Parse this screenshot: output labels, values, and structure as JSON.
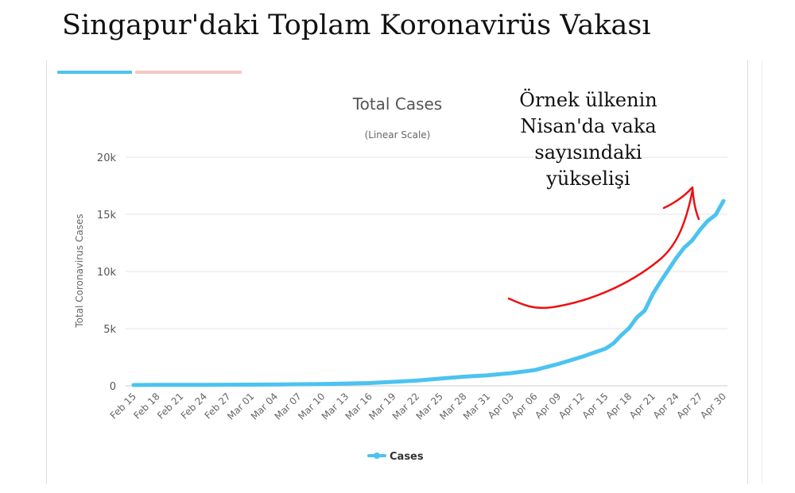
{
  "page": {
    "title": "Singapur'daki Toplam Koronavirüs Vakası"
  },
  "tabs": [
    {
      "color": "#4cc3f0"
    },
    {
      "color": "#f4c7c3"
    }
  ],
  "annotation": {
    "text": "Örnek ülkenin Nisan'da vaka sayısındaki yükselişi",
    "color": "#ee1111"
  },
  "chart_data": {
    "type": "line",
    "title": "Total Cases",
    "subtitle": "(Linear Scale)",
    "ylabel": "Total Coronavirus Cases",
    "ylim": [
      0,
      20000
    ],
    "yticks": [
      0,
      5000,
      10000,
      15000,
      20000
    ],
    "ytick_labels": [
      "0",
      "5k",
      "10k",
      "15k",
      "20k"
    ],
    "x_tick_labels": [
      "Feb 15",
      "Feb 18",
      "Feb 21",
      "Feb 24",
      "Feb 27",
      "Mar 01",
      "Mar 04",
      "Mar 07",
      "Mar 10",
      "Mar 13",
      "Mar 16",
      "Mar 19",
      "Mar 22",
      "Mar 25",
      "Mar 28",
      "Mar 31",
      "Apr 03",
      "Apr 06",
      "Apr 09",
      "Apr 12",
      "Apr 15",
      "Apr 18",
      "Apr 21",
      "Apr 24",
      "Apr 27",
      "Apr 30"
    ],
    "grid": true,
    "legend_position": "bottom",
    "series": [
      {
        "name": "Cases",
        "color": "#4cc3f0",
        "points": [
          [
            "Feb 15",
            72
          ],
          [
            "Feb 18",
            81
          ],
          [
            "Feb 21",
            86
          ],
          [
            "Feb 24",
            90
          ],
          [
            "Feb 27",
            96
          ],
          [
            "Mar 01",
            106
          ],
          [
            "Mar 04",
            112
          ],
          [
            "Mar 07",
            138
          ],
          [
            "Mar 10",
            160
          ],
          [
            "Mar 13",
            200
          ],
          [
            "Mar 16",
            243
          ],
          [
            "Mar 19",
            345
          ],
          [
            "Mar 22",
            455
          ],
          [
            "Mar 25",
            631
          ],
          [
            "Mar 28",
            802
          ],
          [
            "Mar 31",
            926
          ],
          [
            "Apr 03",
            1114
          ],
          [
            "Apr 06",
            1375
          ],
          [
            "Apr 09",
            1910
          ],
          [
            "Apr 12",
            2532
          ],
          [
            "Apr 15",
            3252
          ],
          [
            "Apr 16",
            3699
          ],
          [
            "Apr 17",
            4427
          ],
          [
            "Apr 18",
            5050
          ],
          [
            "Apr 19",
            5992
          ],
          [
            "Apr 20",
            6588
          ],
          [
            "Apr 21",
            8014
          ],
          [
            "Apr 22",
            9125
          ],
          [
            "Apr 23",
            10141
          ],
          [
            "Apr 24",
            11178
          ],
          [
            "Apr 25",
            12075
          ],
          [
            "Apr 26",
            12693
          ],
          [
            "Apr 27",
            13624
          ],
          [
            "Apr 28",
            14423
          ],
          [
            "Apr 29",
            14951
          ],
          [
            "Apr 30",
            16169
          ]
        ]
      }
    ]
  }
}
